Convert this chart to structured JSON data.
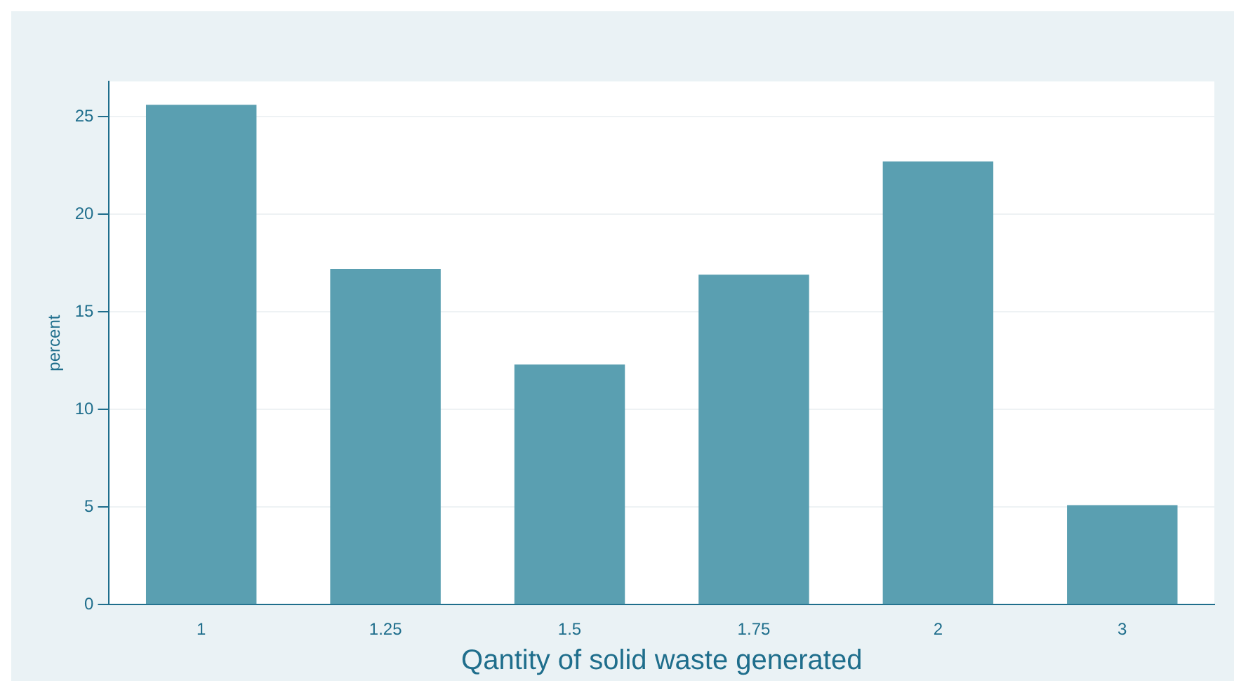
{
  "chart_data": {
    "type": "bar",
    "xlabel": "Qantity of solid waste generated",
    "ylabel": "percent",
    "categories": [
      "1",
      "1.25",
      "1.5",
      "1.75",
      "2",
      "3"
    ],
    "values": [
      25.6,
      17.2,
      12.3,
      16.9,
      22.7,
      5.1
    ],
    "color": "#5a9fb1",
    "ylim": [
      0,
      26.8
    ],
    "yticks": [
      0,
      5,
      10,
      15,
      20,
      25
    ],
    "grid": "y"
  }
}
